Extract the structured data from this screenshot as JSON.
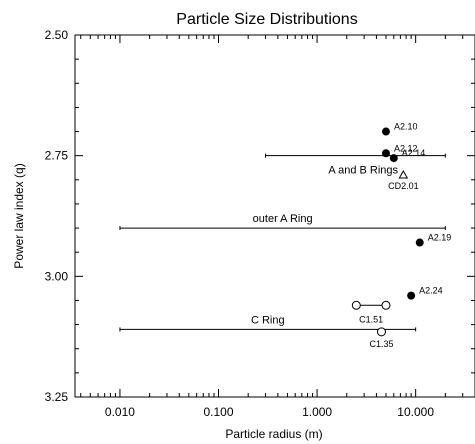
{
  "chart_data": {
    "type": "scatter",
    "title": "Particle Size Distributions",
    "xlabel": "Particle radius (m)",
    "ylabel": "Power law index (q)",
    "x_scale": "log",
    "xlim": [
      0.0035,
      40
    ],
    "ylim": [
      3.25,
      2.5
    ],
    "x_ticks": [
      {
        "value": 0.01,
        "label": "0.010"
      },
      {
        "value": 0.1,
        "label": "0.100"
      },
      {
        "value": 1,
        "label": "1.000"
      },
      {
        "value": 10,
        "label": "10.000"
      }
    ],
    "y_ticks": [
      {
        "value": 2.5,
        "label": "2.50"
      },
      {
        "value": 2.75,
        "label": "2.75"
      },
      {
        "value": 3.0,
        "label": "3.00"
      },
      {
        "value": 3.25,
        "label": "3.25"
      }
    ],
    "grid": false,
    "ranges": [
      {
        "label": "A and B Rings",
        "x_min": 0.3,
        "x_max": 20,
        "y": 2.75
      },
      {
        "label": "outer A Ring",
        "x_min": 0.01,
        "x_max": 20,
        "y": 2.9
      },
      {
        "label": "C Ring",
        "x_min": 0.01,
        "x_max": 10,
        "y": 3.11
      }
    ],
    "points": [
      {
        "label": "A2.10",
        "x": 5.0,
        "y": 2.7,
        "marker": "filled-circle"
      },
      {
        "label": "A2.12",
        "x": 5.0,
        "y": 2.745,
        "marker": "filled-circle"
      },
      {
        "label": "A2.14",
        "x": 6.0,
        "y": 2.755,
        "marker": "filled-circle"
      },
      {
        "label": "CD2.01",
        "x": 7.5,
        "y": 2.79,
        "marker": "open-triangle"
      },
      {
        "label": "A2.19",
        "x": 11.0,
        "y": 2.93,
        "marker": "filled-circle"
      },
      {
        "label": "A2.24",
        "x": 9.0,
        "y": 3.04,
        "marker": "filled-circle"
      },
      {
        "label": "C1.35",
        "x": 4.5,
        "y": 3.115,
        "marker": "open-circle"
      }
    ],
    "segments": [
      {
        "label": "C1.51",
        "x1": 2.5,
        "x2": 5.0,
        "y": 3.06,
        "marker": "open-circle"
      }
    ]
  }
}
